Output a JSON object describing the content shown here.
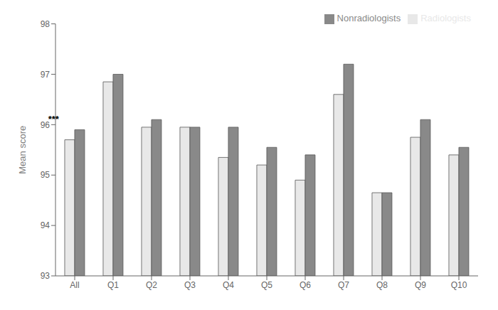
{
  "chart_data": {
    "type": "bar",
    "categories": [
      "All",
      "Q1",
      "Q2",
      "Q3",
      "Q4",
      "Q5",
      "Q6",
      "Q7",
      "Q8",
      "Q9",
      "Q10"
    ],
    "series": [
      {
        "name": "Radiologists",
        "color": "#e8e8e8",
        "values": [
          95.7,
          96.85,
          95.95,
          95.95,
          95.35,
          95.2,
          94.9,
          96.6,
          94.65,
          95.75,
          95.4
        ]
      },
      {
        "name": "Nonradiologists",
        "color": "#898989",
        "values": [
          95.9,
          97.0,
          96.1,
          95.95,
          95.95,
          95.55,
          95.4,
          97.2,
          94.65,
          96.1,
          95.55
        ]
      }
    ],
    "ylabel": "Mean score",
    "ylim": [
      93,
      98
    ],
    "yticks": [
      93,
      94,
      95,
      96,
      97,
      98
    ],
    "annotations": [
      {
        "text": "***",
        "category": "All",
        "y": 96.05
      }
    ],
    "legend": "upper right",
    "grid": false
  }
}
